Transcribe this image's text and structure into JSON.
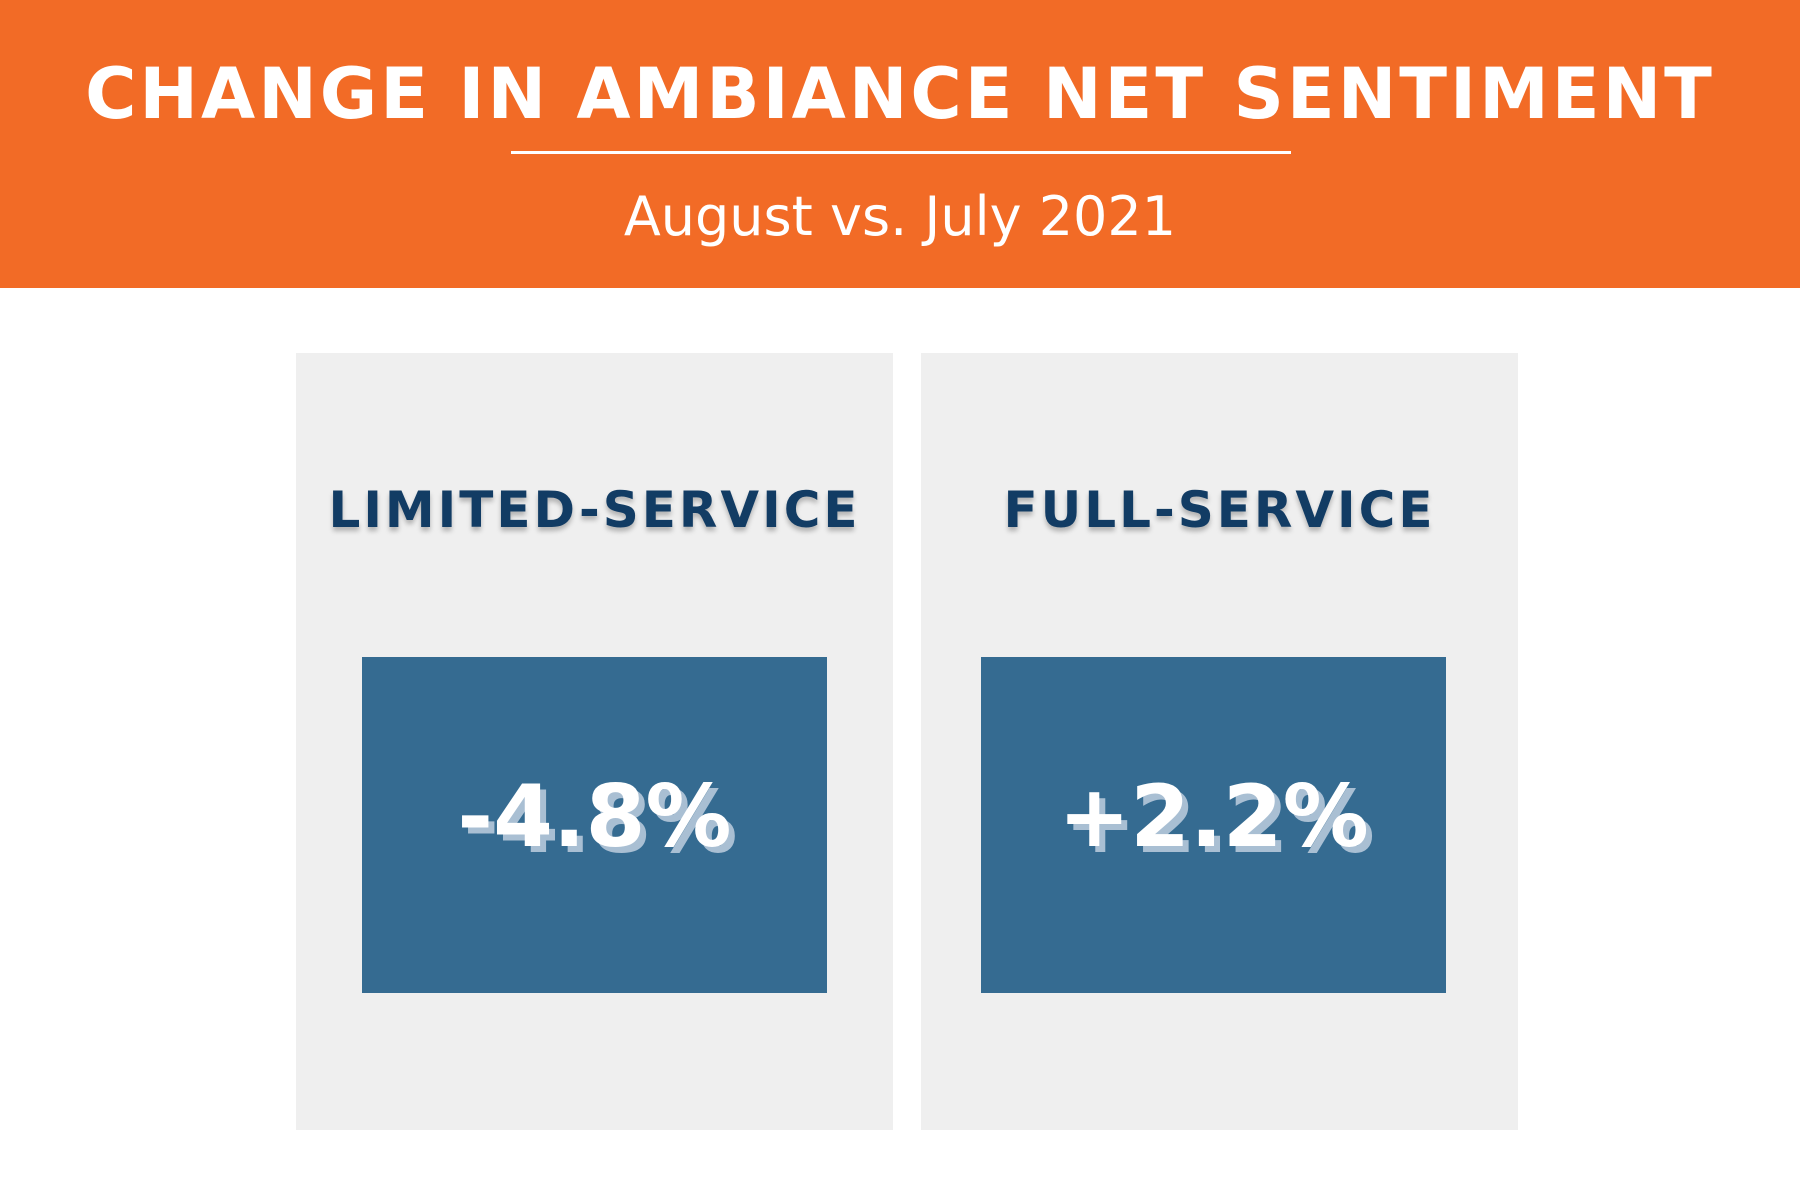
{
  "header": {
    "title": "CHANGE IN AMBIANCE NET SENTIMENT",
    "subtitle": "August vs. July 2021"
  },
  "panels": [
    {
      "label": "LIMITED-SERVICE",
      "value": "-4.8%"
    },
    {
      "label": "FULL-SERVICE",
      "value": "+2.2%"
    }
  ],
  "colors": {
    "header_bg": "#f26b26",
    "panel_bg": "#efefef",
    "label_text": "#123c64",
    "value_box_bg": "#356b91",
    "value_text": "#ffffff",
    "value_shadow": "#a9bfd3"
  }
}
